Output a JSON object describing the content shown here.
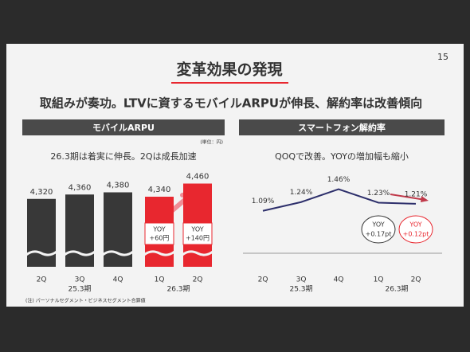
{
  "slide": {
    "page_number": "15",
    "title": "変革効果の発現",
    "headline": "取組みが奏功。LTVに資するモバイルARPUが伸長、解約率は改善傾向",
    "footnote": "(注) パーソナルセグメント・ビジネスセグメント合算値"
  },
  "chart_data": [
    {
      "type": "bar",
      "title": "モバイルARPU",
      "unit_note": "(単位：円)",
      "subtitle": "26.3期は着実に伸長。2Qは成長加速",
      "categories": [
        "2Q",
        "3Q",
        "4Q",
        "1Q",
        "2Q"
      ],
      "values": [
        4320,
        4360,
        4380,
        4340,
        4460
      ],
      "value_labels": [
        "4,320",
        "4,360",
        "4,380",
        "4,340",
        "4,460"
      ],
      "colors": [
        "#383838",
        "#383838",
        "#383838",
        "#e8272f",
        "#e8272f"
      ],
      "ylim": [
        3700,
        4500
      ],
      "group_labels": [
        "25.3期",
        "26.3期"
      ],
      "annotations": [
        [
          "YOY",
          "+60円"
        ],
        [
          "YOY",
          "+140円"
        ]
      ]
    },
    {
      "type": "line",
      "title": "スマートフォン解約率",
      "subtitle": "QOQで改善。YOYの増加幅も縮小",
      "categories": [
        "2Q",
        "3Q",
        "4Q",
        "1Q",
        "2Q"
      ],
      "values": [
        1.09,
        1.24,
        1.46,
        1.23,
        1.21
      ],
      "value_labels": [
        "1.09%",
        "1.24%",
        "1.46%",
        "1.23%",
        "1.21%"
      ],
      "color": "#2d2f6b",
      "ylim": [
        0.8,
        1.7
      ],
      "group_labels": [
        "25.3期",
        "26.3期"
      ],
      "annotations": [
        [
          "YOY",
          "+0.17pt"
        ],
        [
          "YOY",
          "+0.12pt"
        ]
      ]
    }
  ]
}
